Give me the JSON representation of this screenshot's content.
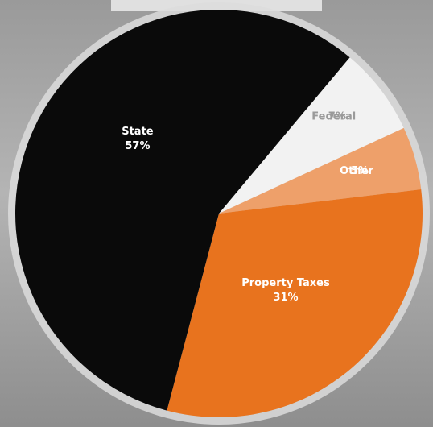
{
  "chart_data": {
    "type": "pie",
    "categories": [
      "Federal",
      "Other",
      "Property Taxes",
      "State"
    ],
    "values": [
      7,
      5,
      31,
      57
    ],
    "value_labels": [
      "7%",
      "5%",
      "31%",
      "57%"
    ],
    "colors": [
      "#f2f2f2",
      "#eea06a",
      "#e8731e",
      "#0a0a0a"
    ]
  }
}
